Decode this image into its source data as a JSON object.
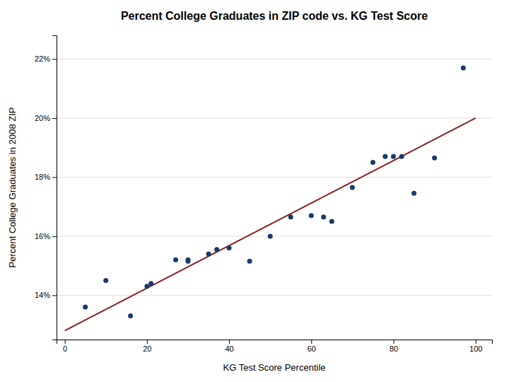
{
  "chart_data": {
    "type": "scatter",
    "title": "Percent College Graduates in ZIP code vs. KG Test Score",
    "xlabel": "KG Test Score Percentile",
    "ylabel": "Percent College Graduates in 2008 ZIP",
    "series": [
      {
        "type": "scatter",
        "color": "#1a3a6b",
        "x": [
          5,
          10,
          16,
          20,
          21,
          27,
          30,
          30,
          35,
          37,
          40,
          45,
          50,
          55,
          60,
          63,
          65,
          70,
          75,
          78,
          80,
          82,
          85,
          90,
          97
        ],
        "values": [
          13.6,
          14.5,
          13.3,
          14.3,
          14.4,
          15.2,
          15.15,
          15.2,
          15.4,
          15.55,
          15.6,
          15.15,
          16.0,
          16.65,
          16.7,
          16.65,
          16.5,
          17.65,
          18.5,
          18.7,
          18.7,
          18.7,
          17.45,
          18.65,
          21.7
        ]
      },
      {
        "type": "line",
        "color": "#8b2020",
        "x": [
          0,
          100
        ],
        "values": [
          12.8,
          20.0
        ]
      }
    ],
    "xlim": [
      -2,
      104
    ],
    "ylim": [
      12.5,
      22.8
    ],
    "xticks": [
      0,
      20,
      40,
      60,
      80,
      100
    ],
    "yticks": [
      {
        "value": 14,
        "label": "14%"
      },
      {
        "value": 16,
        "label": "16%"
      },
      {
        "value": 18,
        "label": "18%"
      },
      {
        "value": 20,
        "label": "20%"
      },
      {
        "value": 22,
        "label": "22%"
      }
    ],
    "grid": "y"
  }
}
